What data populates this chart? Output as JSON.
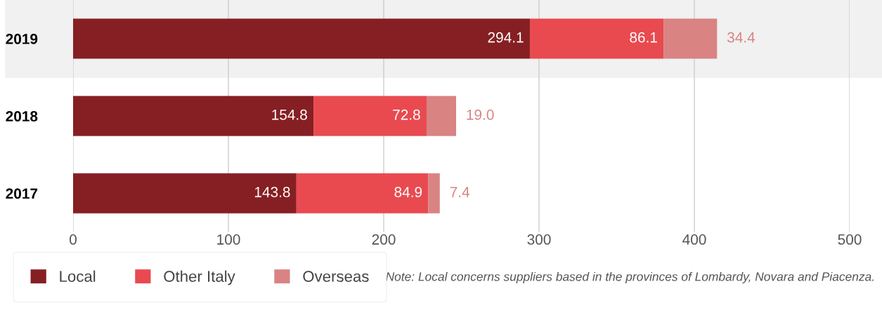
{
  "chart_data": {
    "type": "bar",
    "orientation": "horizontal",
    "stacked": true,
    "categories": [
      "2019",
      "2018",
      "2017"
    ],
    "series": [
      {
        "name": "Local",
        "color": "#861f23",
        "values": [
          294.1,
          154.8,
          143.8
        ],
        "value_labels": [
          "294.1",
          "154.8",
          "143.8"
        ]
      },
      {
        "name": "Other Italy",
        "color": "#e84a50",
        "values": [
          86.1,
          72.8,
          84.9
        ],
        "value_labels": [
          "86.1",
          "72.8",
          "84.9"
        ]
      },
      {
        "name": "Overseas",
        "color": "#d98383",
        "values": [
          34.4,
          19.0,
          7.4
        ],
        "value_labels": [
          "34.4",
          "19.0",
          "7.4"
        ]
      }
    ],
    "xlim": [
      0,
      500
    ],
    "xticks": [
      0,
      100,
      200,
      300,
      400,
      500
    ],
    "grid": "x",
    "legend": "bottom left",
    "bands": [
      {
        "axis": "y",
        "from": "2019",
        "to": "2019",
        "color": "#f0f1f0"
      }
    ],
    "annotations": [
      "Note: Local concerns suppliers based in the provinces of Lombardy, Novara and Piacenza."
    ]
  }
}
